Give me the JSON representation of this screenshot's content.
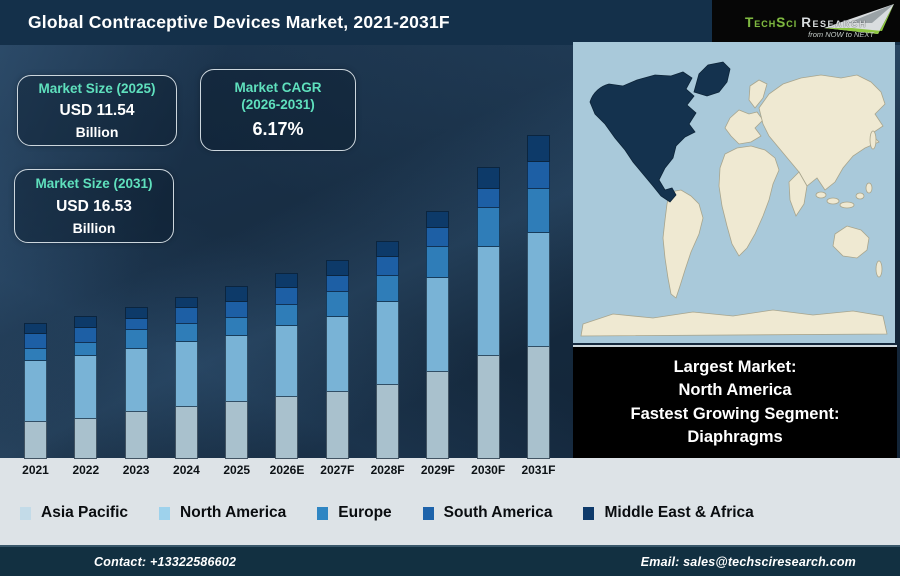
{
  "header": {
    "title": "Global Contraceptive Devices Market, 2021-2031F"
  },
  "logo": {
    "brand": "TechSci",
    "brand2": "Research",
    "tagline": "from NOW to NEXT",
    "brand_green": "#7fb841",
    "brand_silver": "#d9dddf"
  },
  "stat_boxes": [
    {
      "label": "Market Size (2025)",
      "value": "USD 11.54",
      "unit": "Billion"
    },
    {
      "label_line1": "Market CAGR",
      "label_line2": "(2026-2031)",
      "value": "6.17%"
    },
    {
      "label": "Market Size (2031)",
      "value": "USD 16.53",
      "unit": "Billion"
    }
  ],
  "info_box": {
    "line1": "Largest Market:",
    "line2": "North America",
    "line3": "Fastest Growing Segment:",
    "line4": "Diaphragms"
  },
  "legend": {
    "items": [
      {
        "label": "Asia Pacific",
        "color": "#c3dbe8"
      },
      {
        "label": "North America",
        "color": "#9ed2ec"
      },
      {
        "label": "Europe",
        "color": "#2f86c3"
      },
      {
        "label": "South America",
        "color": "#1d63ab"
      },
      {
        "label": "Middle East & Africa",
        "color": "#0e3a6b"
      }
    ]
  },
  "footer": {
    "contact": "Contact: +13322586602",
    "email": "Email: sales@techsciresearch.com"
  },
  "map": {
    "ocean_color": "#a9c9da",
    "land_color": "#efe9d2",
    "highlight_color": "#14324e",
    "highlight_region": "North America"
  },
  "colors": {
    "header_bg": "#14304a",
    "footer_bg": "#123041",
    "bottom_strip": "#dde3e7",
    "stat_label_accent": "#5fe0bd",
    "info_box_bg": "#000000"
  },
  "chart_data": {
    "type": "bar",
    "stacked": true,
    "title": "Global Contraceptive Devices Market, 2021-2031F",
    "categories": [
      "2021",
      "2022",
      "2023",
      "2024",
      "2025",
      "2026E",
      "2027F",
      "2028F",
      "2029F",
      "2030F",
      "2031F"
    ],
    "value_unit": "relative segment height in px (no y-axis shown in figure)",
    "series": [
      {
        "name": "Asia Pacific",
        "color": "#a9c1cd",
        "values": [
          37,
          40,
          47,
          52,
          57,
          62,
          67,
          74,
          87,
          103,
          112
        ]
      },
      {
        "name": "North America",
        "color": "#79b3d6",
        "values": [
          61,
          63,
          63,
          65,
          66,
          71,
          75,
          83,
          94,
          109,
          114
        ]
      },
      {
        "name": "Europe",
        "color": "#2f7db8",
        "values": [
          12,
          13,
          19,
          18,
          18,
          21,
          25,
          26,
          31,
          39,
          44
        ]
      },
      {
        "name": "South America",
        "color": "#1d5fa5",
        "values": [
          15,
          15,
          11,
          16,
          16,
          17,
          16,
          19,
          19,
          19,
          27
        ]
      },
      {
        "name": "Middle East & Africa",
        "color": "#0d3a69",
        "values": [
          11,
          12,
          12,
          11,
          16,
          15,
          16,
          16,
          17,
          22,
          27
        ]
      }
    ],
    "bar_totals_relative": [
      136,
      143,
      152,
      162,
      173,
      186,
      199,
      218,
      248,
      292,
      324
    ],
    "annotations": {
      "market_size_2025_usd_billion": 11.54,
      "market_size_2031_usd_billion": 16.53,
      "cagr_2026_2031_percent": 6.17
    },
    "legend_position": "bottom",
    "axis": {
      "x_labels_shown": true,
      "y_axis_shown": false
    }
  }
}
